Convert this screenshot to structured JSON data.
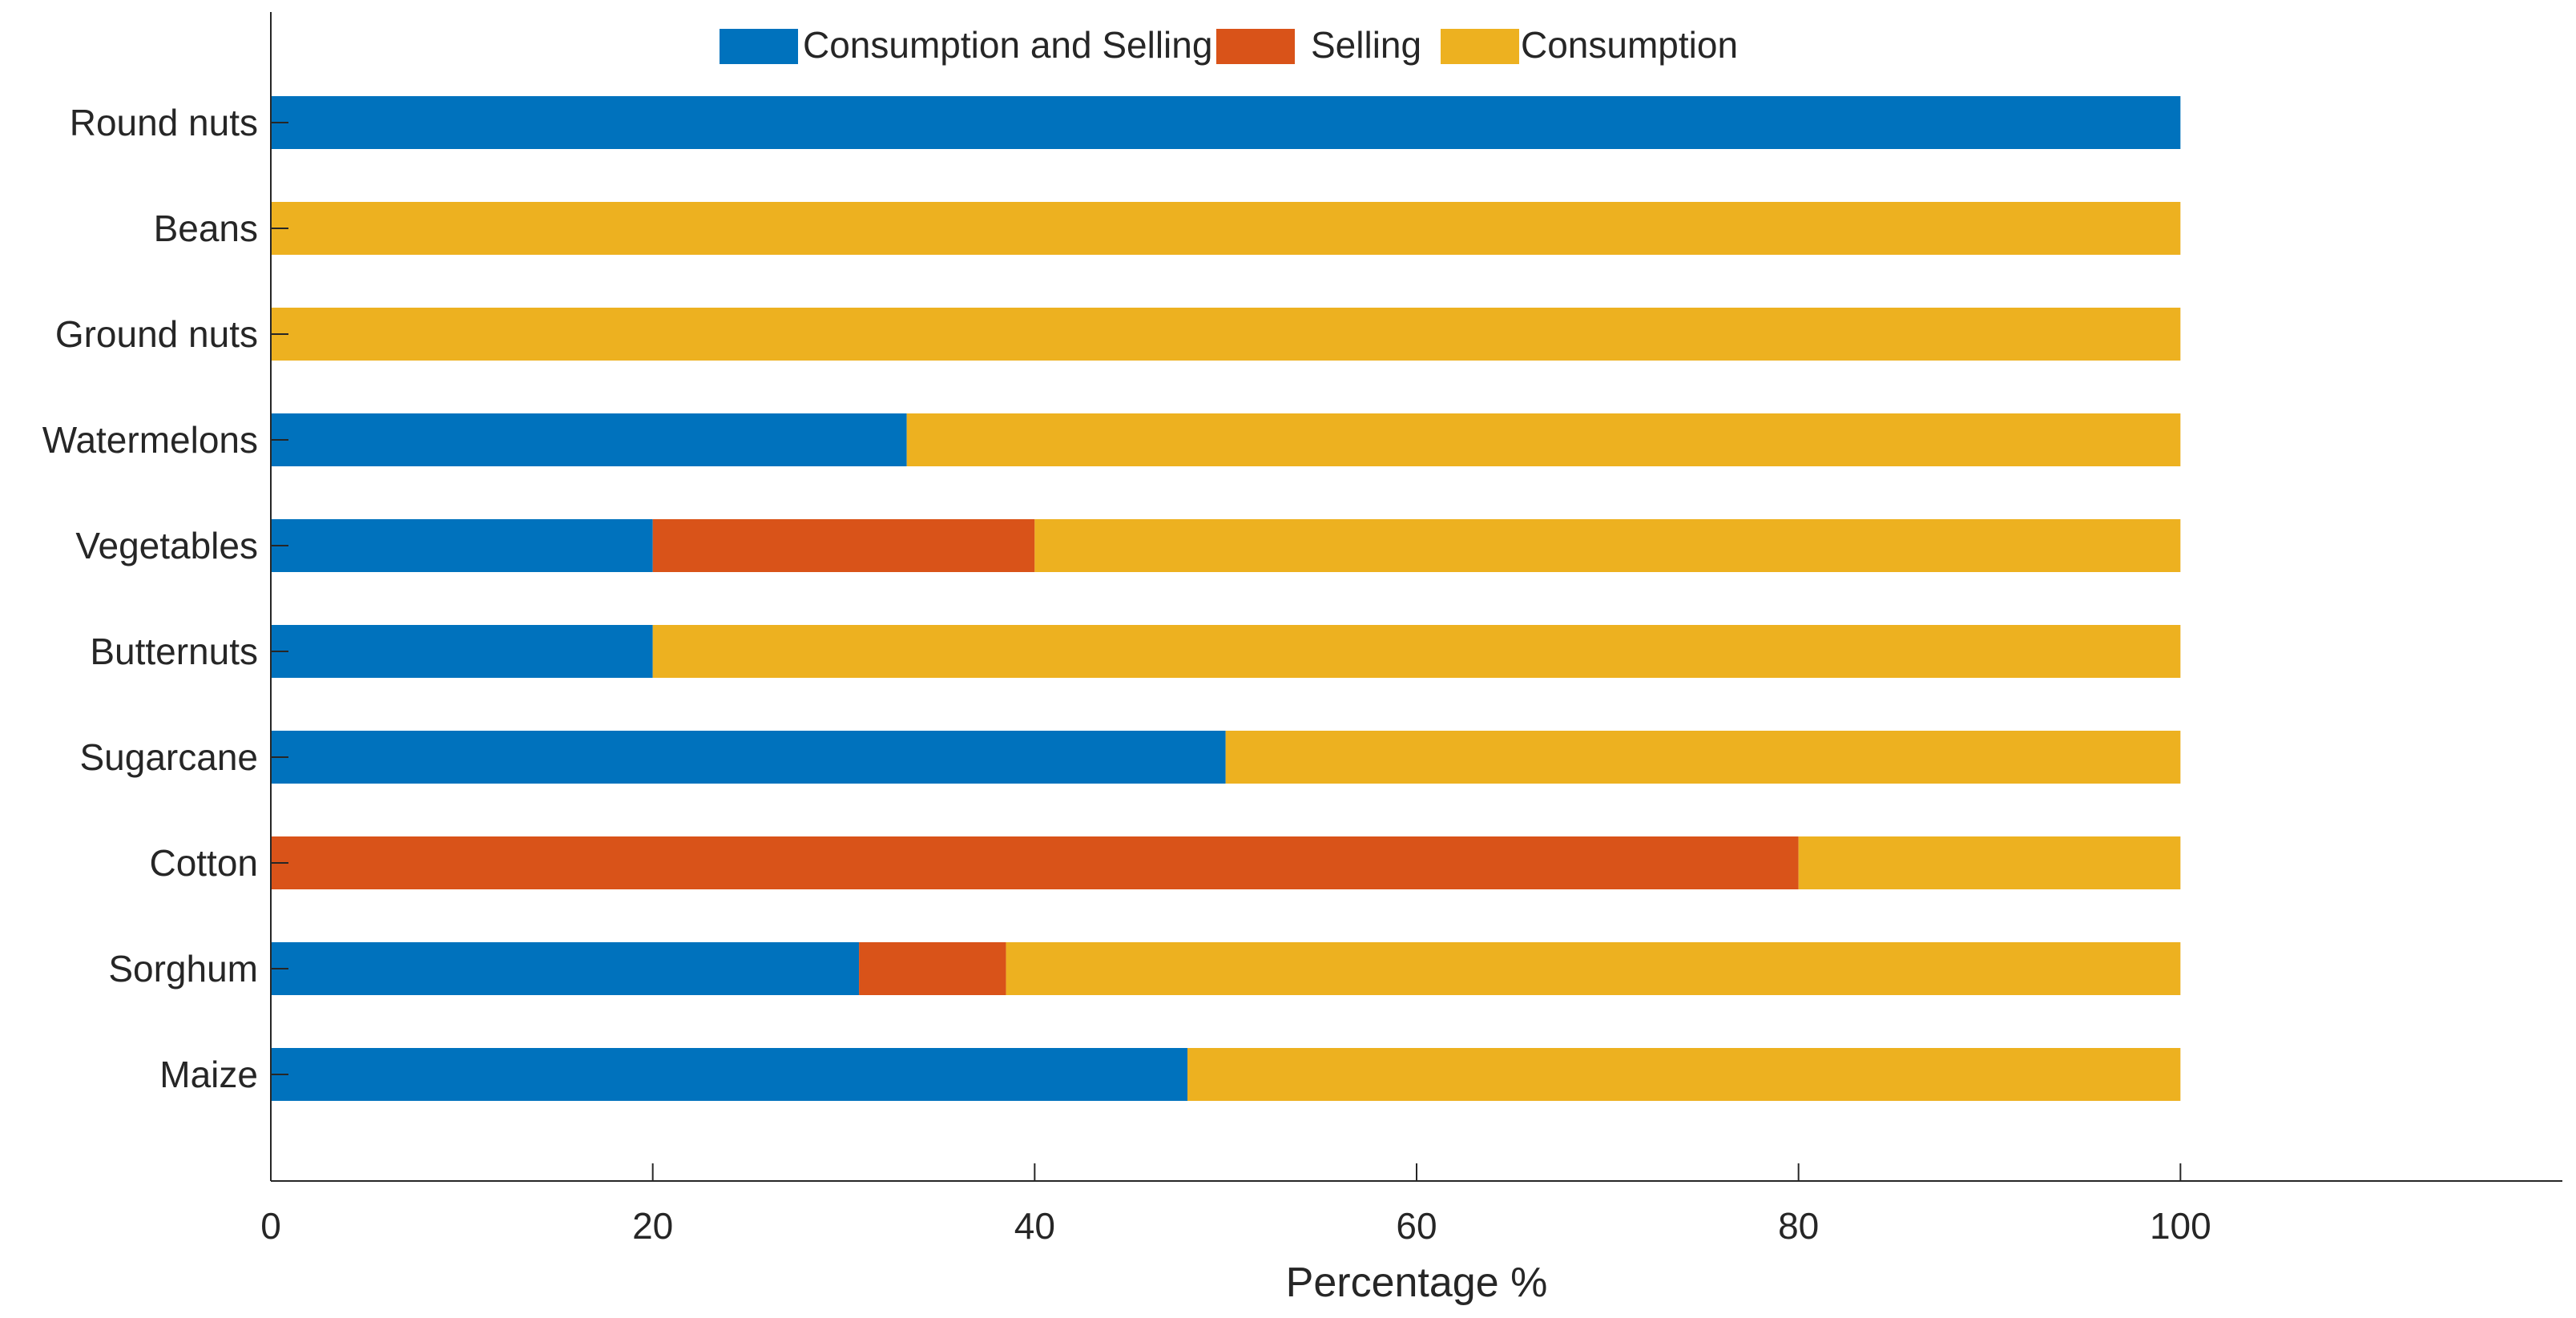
{
  "chart_data": {
    "type": "bar",
    "orientation": "horizontal",
    "stacked": true,
    "title": "",
    "xlabel": "Percentage %",
    "ylabel": "",
    "xlim": [
      0,
      120
    ],
    "x_ticks": [
      0,
      20,
      40,
      60,
      80,
      100
    ],
    "grid": false,
    "legend_position": "top-center",
    "categories": [
      "Round nuts",
      "Beans",
      "Ground nuts",
      "Watermelons",
      "Vegetables",
      "Butternuts",
      "Sugarcane",
      "Cotton",
      "Sorghum",
      "Maize"
    ],
    "series": [
      {
        "name": "Consumption and Selling",
        "color": "#0072BD",
        "values": [
          100,
          0,
          0,
          33.3,
          20,
          20,
          50,
          0,
          30.8,
          48
        ]
      },
      {
        "name": "Selling",
        "color": "#D95319",
        "values": [
          0,
          0,
          0,
          0,
          20,
          0,
          0,
          80,
          7.7,
          0
        ]
      },
      {
        "name": "Consumption",
        "color": "#EDB120",
        "values": [
          0,
          100,
          100,
          66.7,
          60,
          80,
          50,
          20,
          61.5,
          52
        ]
      }
    ]
  }
}
